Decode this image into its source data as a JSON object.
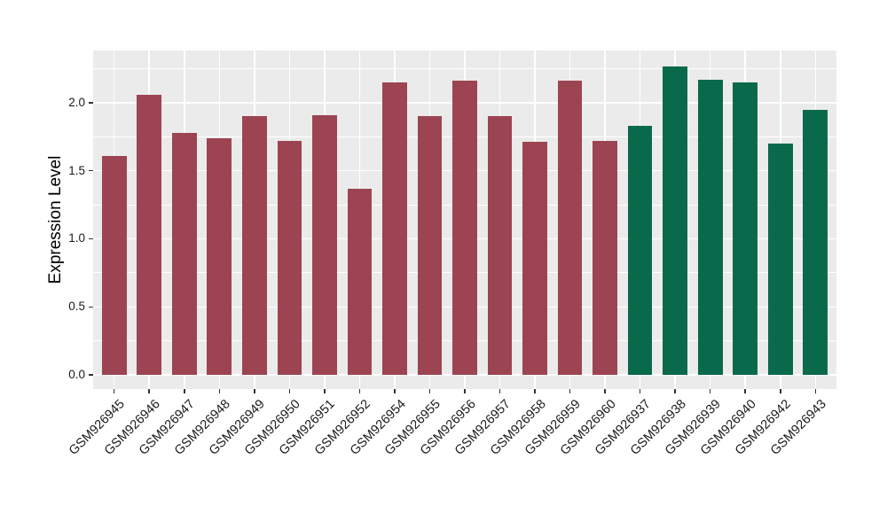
{
  "chart_data": {
    "type": "bar",
    "ylabel": "Expression Level",
    "xlabel": "",
    "categories": [
      "GSM926945",
      "GSM926946",
      "GSM926947",
      "GSM926948",
      "GSM926949",
      "GSM926950",
      "GSM926951",
      "GSM926952",
      "GSM926954",
      "GSM926955",
      "GSM926956",
      "GSM926957",
      "GSM926958",
      "GSM926959",
      "GSM926960",
      "GSM926937",
      "GSM926938",
      "GSM926939",
      "GSM926940",
      "GSM926942",
      "GSM926943"
    ],
    "values": [
      1.61,
      2.06,
      1.78,
      1.74,
      1.9,
      1.72,
      1.91,
      1.37,
      2.15,
      1.9,
      2.16,
      1.9,
      1.71,
      2.16,
      1.72,
      1.83,
      2.27,
      2.17,
      2.15,
      1.7,
      1.95
    ],
    "bar_groups": [
      "maroon",
      "maroon",
      "maroon",
      "maroon",
      "maroon",
      "maroon",
      "maroon",
      "maroon",
      "maroon",
      "maroon",
      "maroon",
      "maroon",
      "maroon",
      "maroon",
      "maroon",
      "green",
      "green",
      "green",
      "green",
      "green",
      "green"
    ],
    "palette": {
      "maroon": "#9C4452",
      "green": "#086A4A"
    },
    "ylim": [
      -0.104,
      2.384
    ],
    "yticks": [
      0,
      0.5,
      1,
      1.5,
      2
    ],
    "ytick_labels": [
      "0.0",
      "0.5",
      "1.0",
      "1.5",
      "2.0"
    ],
    "minor_yticks": [
      0.25,
      0.75,
      1.25,
      1.75,
      2.25
    ],
    "grid_on": true,
    "legend": "none",
    "style": {
      "plot_bg": "#EBEBEB",
      "grid_color": "#FFFFFF",
      "tick_color": "#333333",
      "text_color": "#1a1a1a"
    }
  }
}
